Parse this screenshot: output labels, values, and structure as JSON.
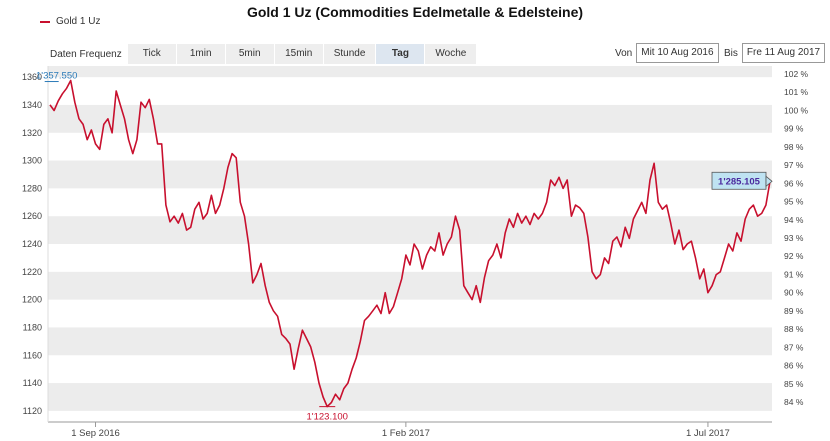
{
  "chart_data": {
    "type": "line",
    "title": "Gold 1 Uz (Commodities Edelmetalle & Edelsteine)",
    "series": [
      {
        "name": "Gold 1 Uz",
        "color": "#c8102e",
        "values": [
          1340,
          1336,
          1343,
          1348,
          1352,
          1357.55,
          1342,
          1330,
          1326,
          1315,
          1322,
          1312,
          1308,
          1326,
          1330,
          1320,
          1350,
          1340,
          1330,
          1315,
          1305,
          1315,
          1342,
          1338,
          1344,
          1330,
          1312,
          1312,
          1268,
          1256,
          1260,
          1255,
          1262,
          1250,
          1252,
          1265,
          1270,
          1258,
          1262,
          1275,
          1262,
          1268,
          1280,
          1295,
          1305,
          1302,
          1270,
          1260,
          1240,
          1212,
          1218,
          1226,
          1210,
          1198,
          1192,
          1188,
          1175,
          1172,
          1168,
          1150,
          1165,
          1178,
          1172,
          1166,
          1155,
          1140,
          1130,
          1123.1,
          1126,
          1132,
          1128,
          1136,
          1140,
          1150,
          1158,
          1170,
          1185,
          1188,
          1192,
          1196,
          1190,
          1205,
          1190,
          1195,
          1205,
          1215,
          1232,
          1225,
          1240,
          1235,
          1222,
          1232,
          1238,
          1235,
          1248,
          1232,
          1240,
          1245,
          1260,
          1250,
          1210,
          1205,
          1200,
          1210,
          1198,
          1216,
          1228,
          1232,
          1240,
          1230,
          1248,
          1258,
          1252,
          1262,
          1255,
          1260,
          1254,
          1262,
          1258,
          1262,
          1270,
          1286,
          1282,
          1288,
          1280,
          1286,
          1260,
          1268,
          1266,
          1262,
          1245,
          1220,
          1215,
          1218,
          1230,
          1226,
          1242,
          1245,
          1238,
          1252,
          1244,
          1258,
          1264,
          1270,
          1262,
          1286,
          1298,
          1270,
          1265,
          1268,
          1255,
          1240,
          1250,
          1236,
          1240,
          1242,
          1230,
          1215,
          1222,
          1205,
          1210,
          1218,
          1220,
          1230,
          1240,
          1235,
          1248,
          1242,
          1258,
          1265,
          1268,
          1260,
          1262,
          1268,
          1285.105
        ]
      }
    ],
    "x_ticks": [
      "1 Sep 2016",
      "1 Feb 2017",
      "1 Jul 2017"
    ],
    "y_left": {
      "min": 1112,
      "max": 1368,
      "ticks": [
        1120,
        1140,
        1160,
        1180,
        1200,
        1220,
        1240,
        1260,
        1280,
        1300,
        1320,
        1340,
        1360
      ]
    },
    "y_right": {
      "ticks": [
        "84 %",
        "85 %",
        "86 %",
        "87 %",
        "88 %",
        "89 %",
        "90 %",
        "91 %",
        "92 %",
        "93 %",
        "94 %",
        "95 %",
        "96 %",
        "97 %",
        "98 %",
        "99 %",
        "100 %",
        "101 %",
        "102 %"
      ]
    },
    "annotations": {
      "max_label": "1'357.550",
      "min_label": "1'123.100",
      "last_label": "1'285.105"
    },
    "grid": "horizontal bands"
  },
  "toolbar": {
    "freq_label": "Daten Frequenz",
    "buttons": [
      "Tick",
      "1min",
      "5min",
      "15min",
      "Stunde",
      "Tag",
      "Woche"
    ],
    "active": "Tag",
    "from_label": "Von",
    "from_value": "Mit 10 Aug 2016",
    "to_label": "Bis",
    "to_value": "Fre 11 Aug 2017"
  }
}
